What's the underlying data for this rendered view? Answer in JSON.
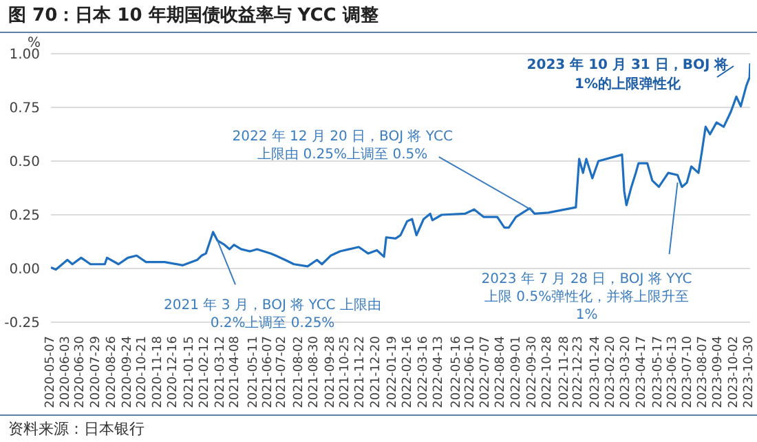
{
  "chart_data": {
    "type": "line",
    "title": "图 70：日本 10 年期国债收益率与 YCC 调整",
    "ylabel": "%",
    "x": [
      "2020-05-07",
      "2020-05-16",
      "2020-06-06",
      "2020-06-15",
      "2020-07-01",
      "2020-07-18",
      "2020-08-13",
      "2020-08-17",
      "2020-09-07",
      "2020-09-24",
      "2020-10-10",
      "2020-10-27",
      "2020-11-30",
      "2021-01-02",
      "2021-01-28",
      "2021-02-05",
      "2021-02-13",
      "2021-02-26",
      "2021-03-06",
      "2021-03-19",
      "2021-03-28",
      "2021-04-05",
      "2021-04-18",
      "2021-05-04",
      "2021-05-17",
      "2021-06-11",
      "2021-06-20",
      "2021-07-07",
      "2021-07-23",
      "2021-08-17",
      "2021-09-03",
      "2021-09-12",
      "2021-09-28",
      "2021-10-15",
      "2021-11-01",
      "2021-11-18",
      "2021-12-05",
      "2021-12-21",
      "2022-01-03",
      "2022-01-07",
      "2022-01-24",
      "2022-02-02",
      "2022-02-14",
      "2022-02-23",
      "2022-03-03",
      "2022-03-16",
      "2022-03-28",
      "2022-04-01",
      "2022-04-18",
      "2022-05-30",
      "2022-06-16",
      "2022-07-03",
      "2022-07-28",
      "2022-08-10",
      "2022-08-18",
      "2022-08-31",
      "2022-09-25",
      "2022-10-04",
      "2022-10-29",
      "2022-12-18",
      "2022-12-24",
      "2022-12-31",
      "2023-01-06",
      "2023-01-17",
      "2023-01-28",
      "2023-03-12",
      "2023-03-16",
      "2023-03-20",
      "2023-03-29",
      "2023-04-06",
      "2023-04-11",
      "2023-04-27",
      "2023-05-06",
      "2023-05-18",
      "2023-06-04",
      "2023-06-21",
      "2023-06-29",
      "2023-07-08",
      "2023-07-16",
      "2023-07-29",
      "2023-08-04",
      "2023-08-11",
      "2023-08-19",
      "2023-08-31",
      "2023-09-13",
      "2023-09-26",
      "2023-10-06",
      "2023-10-14",
      "2023-10-24",
      "2023-10-30",
      "2023-10-31"
    ],
    "series": [
      {
        "color": "#1f6fc0",
        "values": [
          0.005,
          -0.005,
          0.04,
          0.02,
          0.05,
          0.02,
          0.02,
          0.05,
          0.02,
          0.05,
          0.06,
          0.03,
          0.03,
          0.015,
          0.04,
          0.06,
          0.07,
          0.17,
          0.13,
          0.11,
          0.09,
          0.11,
          0.09,
          0.08,
          0.09,
          0.07,
          0.06,
          0.04,
          0.02,
          0.01,
          0.04,
          0.02,
          0.06,
          0.08,
          0.09,
          0.1,
          0.07,
          0.085,
          0.055,
          0.145,
          0.14,
          0.155,
          0.22,
          0.23,
          0.155,
          0.23,
          0.255,
          0.225,
          0.25,
          0.255,
          0.275,
          0.24,
          0.24,
          0.19,
          0.19,
          0.24,
          0.28,
          0.255,
          0.26,
          0.285,
          0.51,
          0.445,
          0.51,
          0.42,
          0.5,
          0.53,
          0.36,
          0.295,
          0.38,
          0.445,
          0.49,
          0.49,
          0.41,
          0.38,
          0.445,
          0.435,
          0.38,
          0.4,
          0.475,
          0.445,
          0.54,
          0.66,
          0.625,
          0.68,
          0.66,
          0.73,
          0.8,
          0.755,
          0.85,
          0.89,
          0.955
        ]
      }
    ],
    "xlim": [
      "2020-05-07",
      "2023-10-31"
    ],
    "xticks": [
      "2020-05-07",
      "2020-06-03",
      "2020-06-30",
      "2020-07-29",
      "2020-08-26",
      "2020-09-24",
      "2020-10-21",
      "2020-11-18",
      "2020-12-16",
      "2021-01-15",
      "2021-02-12",
      "2021-03-12",
      "2021-04-08",
      "2021-05-11",
      "2021-06-07",
      "2021-07-02",
      "2021-08-02",
      "2021-08-30",
      "2021-09-28",
      "2021-10-25",
      "2021-11-22",
      "2021-12-20",
      "2022-01-19",
      "2022-02-16",
      "2022-03-16",
      "2022-04-13",
      "2022-05-16",
      "2022-06-10",
      "2022-07-07",
      "2022-08-04",
      "2022-09-01",
      "2022-09-30",
      "2022-10-28",
      "2022-11-28",
      "2022-12-23",
      "2023-01-24",
      "2023-02-20",
      "2023-03-20",
      "2023-04-17",
      "2023-05-17",
      "2023-06-13",
      "2023-07-10",
      "2023-08-07",
      "2023-09-04",
      "2023-10-02",
      "2023-10-30"
    ],
    "ylim": [
      -0.25,
      1.0
    ],
    "yticks": [
      {
        "value": -0.25,
        "label": "-0.25"
      },
      {
        "value": 0,
        "label": "0.00"
      },
      {
        "value": 0.25,
        "label": "0.25"
      },
      {
        "value": 0.5,
        "label": "0.50"
      },
      {
        "value": 0.75,
        "label": "0.75"
      },
      {
        "value": 1.0,
        "label": "1.00"
      }
    ],
    "grid": "y",
    "legend": false,
    "marker": "none",
    "line_style": "solid",
    "annotations": [
      {
        "text": "2021 年 3 月，BOJ 将 YCC 上限由\n0.2%上调至 0.25%",
        "x": "2021-03-06",
        "y": 0.13
      },
      {
        "text": "2022 年 12 月 20 日，BOJ 将 YCC\n上限由 0.25%上调至 0.5%",
        "x": "2022-09-30",
        "y": 0.27
      },
      {
        "text": "2023 年 7 月 28 日，BOJ 将 YYC\n上限 0.5%弹性化，并将上限升至\n1%",
        "x": "2023-06-21",
        "y": 0.4
      },
      "2023 年 10 月 31 日，BOJ 将\n1%的上限弹性化",
      "资料来源：日本银行"
    ]
  }
}
